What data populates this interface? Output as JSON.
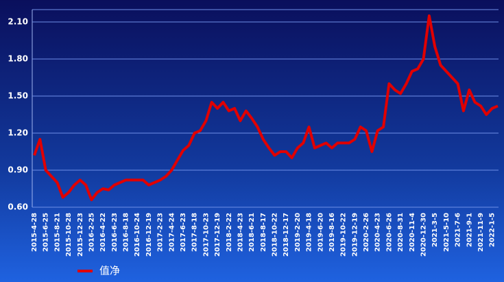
{
  "chart_data": {
    "type": "line",
    "categories": [
      "2015-4-28",
      null,
      "2015-6-25",
      null,
      "2015-8-21",
      null,
      "2015-10-28",
      null,
      "2015-12-23",
      null,
      "2016-2-25",
      null,
      "2016-4-22",
      null,
      "2016-6-23",
      null,
      "2016-8-18",
      null,
      "2016-10-24",
      null,
      "2016-12-19",
      null,
      "2017-2-23",
      null,
      "2017-4-24",
      null,
      "2017-6-23",
      null,
      "2017-8-18",
      null,
      "2017-10-23",
      null,
      "2017-12-19",
      null,
      "2018-2-22",
      null,
      "2018-4-23",
      null,
      "2018-6-21",
      null,
      "2018-8-17",
      null,
      "2018-10-22",
      null,
      "2018-12-17",
      null,
      "2019-2-20",
      null,
      "2019-4-18",
      null,
      "2019-6-20",
      null,
      "2019-8-16",
      null,
      "2019-10-22",
      null,
      "2019-12-19",
      null,
      "2020-2-26",
      null,
      "2020-4-23",
      null,
      "2020-6-26",
      null,
      "2020-8-31",
      null,
      "2020-11-4",
      null,
      "2020-12-30",
      null,
      "2021-3-5",
      null,
      "2021-5-10",
      null,
      "2021-7-6",
      null,
      "2021-9-1",
      null,
      "2021-11-9",
      null,
      "2022-1-5",
      null
    ],
    "series": [
      {
        "name": "值净",
        "color": "#e00000",
        "values": [
          1.02,
          1.15,
          0.9,
          0.85,
          0.8,
          0.68,
          0.72,
          0.78,
          0.82,
          0.78,
          0.66,
          0.72,
          0.75,
          0.74,
          0.78,
          0.8,
          0.82,
          0.82,
          0.82,
          0.82,
          0.78,
          0.8,
          0.82,
          0.85,
          0.9,
          0.98,
          1.06,
          1.1,
          1.2,
          1.22,
          1.3,
          1.45,
          1.4,
          1.45,
          1.38,
          1.4,
          1.3,
          1.38,
          1.32,
          1.25,
          1.15,
          1.08,
          1.02,
          1.05,
          1.05,
          1.0,
          1.08,
          1.12,
          1.25,
          1.08,
          1.1,
          1.12,
          1.08,
          1.12,
          1.12,
          1.12,
          1.15,
          1.25,
          1.22,
          1.05,
          1.22,
          1.25,
          1.6,
          1.55,
          1.52,
          1.6,
          1.7,
          1.72,
          1.8,
          2.15,
          1.9,
          1.75,
          1.7,
          1.65,
          1.6,
          1.38,
          1.55,
          1.45,
          1.42,
          1.35,
          1.4,
          1.42
        ]
      }
    ],
    "ylim": [
      0.6,
      2.2
    ],
    "yticks": [
      {
        "value": 0.6,
        "label": "0.60"
      },
      {
        "value": 0.9,
        "label": "0.90"
      },
      {
        "value": 1.2,
        "label": "1.20"
      },
      {
        "value": 1.5,
        "label": "1.50"
      },
      {
        "value": 1.8,
        "label": "1.80"
      },
      {
        "value": 2.1,
        "label": "2.10"
      }
    ],
    "grid": true
  }
}
